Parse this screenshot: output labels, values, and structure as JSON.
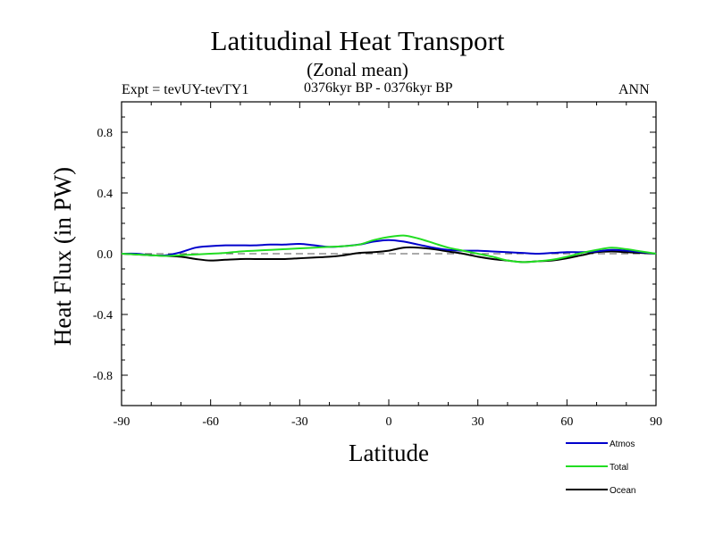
{
  "header": {
    "title": "Latitudinal Heat Transport",
    "subtitle": "(Zonal mean)",
    "expt_label": "Expt = tevUY-tevTY1",
    "period_label": "0376kyr BP - 0376kyr BP",
    "season_label": "ANN"
  },
  "chart_data": {
    "type": "line",
    "title": "Latitudinal Heat Transport",
    "subtitle": "(Zonal mean)",
    "xlabel": "Latitude",
    "ylabel": "Heat Flux (in PW)",
    "xlim": [
      -90,
      90
    ],
    "ylim": [
      -1.0,
      1.0
    ],
    "xticks": [
      -90,
      -60,
      -30,
      0,
      30,
      60,
      90
    ],
    "xtick_labels": [
      "-90",
      "-60",
      "-30",
      "0",
      "30",
      "60",
      "90"
    ],
    "yticks": [
      -0.8,
      -0.4,
      0.0,
      0.4,
      0.8
    ],
    "ytick_labels": [
      "-0.8",
      "-0.4",
      "0.0",
      "0.4",
      "0.8"
    ],
    "zero_line": "dashed",
    "grid": false,
    "legend_position": "bottom-right",
    "x": [
      -90,
      -85,
      -80,
      -75,
      -70,
      -65,
      -60,
      -55,
      -50,
      -45,
      -40,
      -35,
      -30,
      -25,
      -20,
      -15,
      -10,
      -5,
      0,
      5,
      10,
      15,
      20,
      25,
      30,
      35,
      40,
      45,
      50,
      55,
      60,
      65,
      70,
      75,
      80,
      85,
      90
    ],
    "series": [
      {
        "name": "Atmos",
        "color": "#0000cc",
        "values": [
          0.0,
          0.0,
          -0.01,
          -0.01,
          0.01,
          0.04,
          0.05,
          0.055,
          0.055,
          0.055,
          0.06,
          0.06,
          0.065,
          0.055,
          0.045,
          0.05,
          0.06,
          0.08,
          0.09,
          0.08,
          0.06,
          0.04,
          0.025,
          0.02,
          0.02,
          0.015,
          0.01,
          0.005,
          0.0,
          0.005,
          0.01,
          0.01,
          0.015,
          0.025,
          0.02,
          0.01,
          0.0
        ]
      },
      {
        "name": "Total",
        "color": "#22dd22",
        "values": [
          0.0,
          -0.005,
          -0.01,
          -0.015,
          -0.01,
          -0.005,
          0.0,
          0.005,
          0.015,
          0.02,
          0.025,
          0.03,
          0.035,
          0.04,
          0.045,
          0.05,
          0.06,
          0.09,
          0.11,
          0.12,
          0.1,
          0.07,
          0.04,
          0.02,
          0.0,
          -0.02,
          -0.045,
          -0.055,
          -0.05,
          -0.04,
          -0.02,
          0.005,
          0.025,
          0.04,
          0.03,
          0.015,
          0.0
        ]
      },
      {
        "name": "Ocean",
        "color": "#000000",
        "values": [
          0.0,
          -0.005,
          -0.01,
          -0.015,
          -0.02,
          -0.035,
          -0.045,
          -0.04,
          -0.035,
          -0.035,
          -0.035,
          -0.035,
          -0.03,
          -0.025,
          -0.02,
          -0.01,
          0.005,
          0.01,
          0.02,
          0.04,
          0.04,
          0.03,
          0.015,
          0.0,
          -0.02,
          -0.035,
          -0.045,
          -0.055,
          -0.05,
          -0.045,
          -0.03,
          -0.01,
          0.01,
          0.015,
          0.01,
          0.005,
          0.0
        ]
      }
    ]
  }
}
